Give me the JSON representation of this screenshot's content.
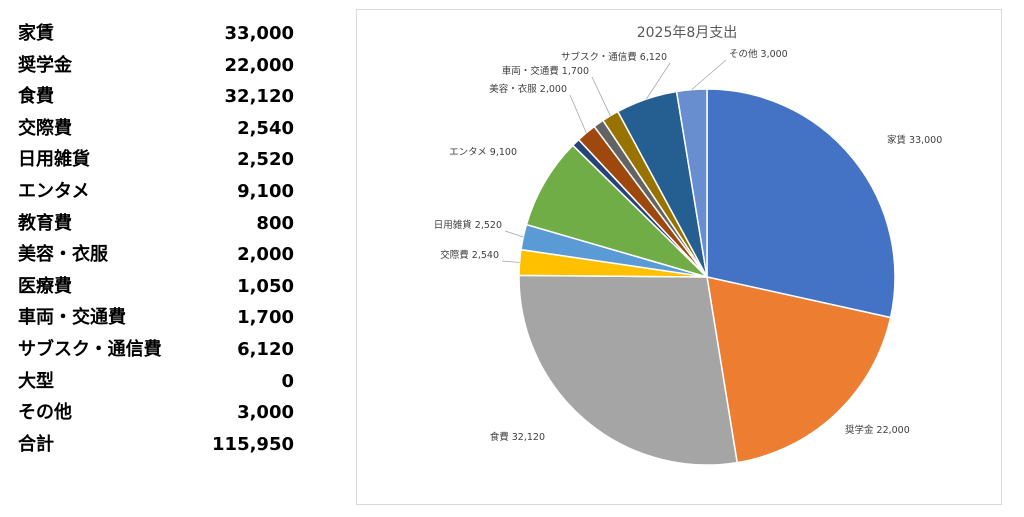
{
  "table": {
    "rows": [
      {
        "label": "家賃",
        "value": "33,000"
      },
      {
        "label": "奨学金",
        "value": "22,000"
      },
      {
        "label": "食費",
        "value": "32,120"
      },
      {
        "label": "交際費",
        "value": "2,540"
      },
      {
        "label": "日用雑貨",
        "value": "2,520"
      },
      {
        "label": "エンタメ",
        "value": "9,100"
      },
      {
        "label": "教育費",
        "value": "800"
      },
      {
        "label": "美容・衣服",
        "value": "2,000"
      },
      {
        "label": "医療費",
        "value": "1,050"
      },
      {
        "label": "車両・交通費",
        "value": "1,700"
      },
      {
        "label": "サブスク・通信費",
        "value": "6,120"
      },
      {
        "label": "大型",
        "value": "0"
      },
      {
        "label": "その他",
        "value": "3,000"
      },
      {
        "label": "合計",
        "value": "115,950"
      }
    ]
  },
  "chart_data": {
    "type": "pie",
    "title": "2025年8月支出",
    "start": "12 o'clock, clockwise",
    "slices": [
      {
        "label": "家賃",
        "value": 33000,
        "color": "#4472C4",
        "data_label": "家賃 33,000"
      },
      {
        "label": "奨学金",
        "value": 22000,
        "color": "#ED7D31",
        "data_label": "奨学金 22,000"
      },
      {
        "label": "食費",
        "value": 32120,
        "color": "#A5A5A5",
        "data_label": "食費 32,120"
      },
      {
        "label": "交際費",
        "value": 2540,
        "color": "#FFC000",
        "data_label": "交際費 2,540"
      },
      {
        "label": "日用雑貨",
        "value": 2520,
        "color": "#5B9BD5",
        "data_label": "日用雑貨 2,520"
      },
      {
        "label": "エンタメ",
        "value": 9100,
        "color": "#70AD47",
        "data_label": "エンタメ 9,100"
      },
      {
        "label": "教育費",
        "value": 800,
        "color": "#264478",
        "data_label": ""
      },
      {
        "label": "美容・衣服",
        "value": 2000,
        "color": "#9E480E",
        "data_label": "美容・衣服 2,000"
      },
      {
        "label": "医療費",
        "value": 1050,
        "color": "#636363",
        "data_label": ""
      },
      {
        "label": "車両・交通費",
        "value": 1700,
        "color": "#997300",
        "data_label": "車両・交通費 1,700"
      },
      {
        "label": "サブスク・通信費",
        "value": 6120,
        "color": "#255E91",
        "data_label": "サブスク・通信費 6,120"
      },
      {
        "label": "大型",
        "value": 0,
        "color": "#43682B",
        "data_label": ""
      },
      {
        "label": "その他",
        "value": 3000,
        "color": "#698ED0",
        "data_label": "その他 3,000"
      }
    ]
  }
}
